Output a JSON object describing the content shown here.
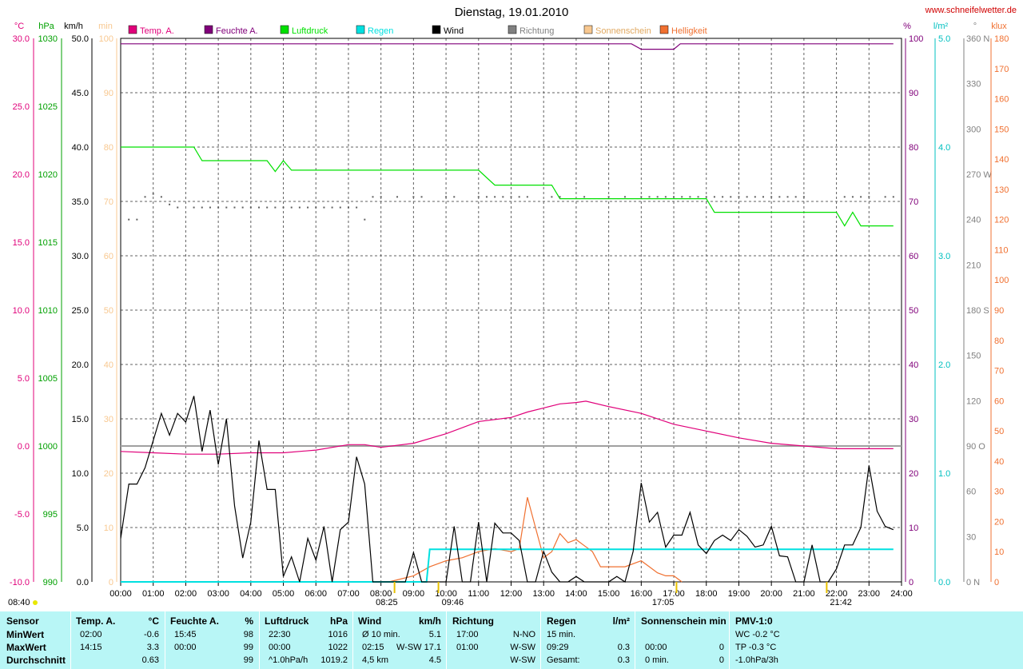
{
  "header": {
    "title": "Dienstag, 19.01.2010",
    "url": "www.schneifelwetter.de"
  },
  "legend": [
    {
      "label": "Temp. A.",
      "color": "#e0007a"
    },
    {
      "label": "Feuchte A.",
      "color": "#80007a"
    },
    {
      "label": "Luftdruck",
      "color": "#00e000"
    },
    {
      "label": "Regen",
      "color": "#00e0e0"
    },
    {
      "label": "Wind",
      "color": "#000000"
    },
    {
      "label": "Richtung",
      "color": "#808080"
    },
    {
      "label": "Sonnenschein",
      "color": "#f8c890"
    },
    {
      "label": "Helligkeit",
      "color": "#f07030"
    }
  ],
  "axes": {
    "temp": {
      "unit": "°C",
      "color": "#e0007a",
      "ticks": [
        "30.0",
        "25.0",
        "20.0",
        "15.0",
        "10.0",
        "5.0",
        "0.0",
        "-5.0",
        "-10.0"
      ],
      "range": [
        -10,
        30
      ]
    },
    "pressure": {
      "unit": "hPa",
      "color": "#00a000",
      "ticks": [
        "1030",
        "1025",
        "1020",
        "1015",
        "1010",
        "1005",
        "1000",
        "995",
        "990"
      ],
      "range": [
        990,
        1030
      ]
    },
    "wind": {
      "unit": "km/h",
      "color": "#000000",
      "ticks": [
        "50.0",
        "45.0",
        "40.0",
        "35.0",
        "30.0",
        "25.0",
        "20.0",
        "15.0",
        "10.0",
        "5.0",
        "0.0"
      ],
      "range": [
        0,
        50
      ]
    },
    "sun": {
      "unit": "min",
      "color": "#f8c890",
      "ticks": [
        "100",
        "90",
        "80",
        "70",
        "60",
        "50",
        "40",
        "30",
        "20",
        "10",
        "0"
      ],
      "range": [
        0,
        100
      ]
    },
    "humidity": {
      "unit": "%",
      "color": "#80007a",
      "ticks": [
        "100",
        "90",
        "80",
        "70",
        "60",
        "50",
        "40",
        "30",
        "20",
        "10",
        "0"
      ],
      "range": [
        0,
        100
      ]
    },
    "rain": {
      "unit": "l/m²",
      "color": "#00c0c0",
      "ticks": [
        "5.0",
        "4.0",
        "3.0",
        "2.0",
        "1.0",
        "0.0"
      ],
      "range": [
        0,
        5
      ]
    },
    "direction": {
      "unit": "°",
      "color": "#808080",
      "ticks": [
        "360 N",
        "330",
        "300",
        "270 W",
        "240",
        "210",
        "180 S",
        "150",
        "120",
        "90 O",
        "60",
        "30",
        "0   N"
      ],
      "range": [
        0,
        360
      ]
    },
    "brightness": {
      "unit": "klux",
      "color": "#f07030",
      "ticks": [
        "180",
        "170",
        "160",
        "150",
        "140",
        "130",
        "120",
        "110",
        "100",
        "90",
        "80",
        "70",
        "60",
        "50",
        "40",
        "30",
        "20",
        "10",
        "0"
      ],
      "range": [
        0,
        180
      ]
    },
    "time_ticks": [
      "00:00",
      "01:00",
      "02:00",
      "03:00",
      "04:00",
      "05:00",
      "06:00",
      "07:00",
      "08:00",
      "09:00",
      "10:00",
      "11:00",
      "12:00",
      "13:00",
      "14:00",
      "15:00",
      "16:00",
      "17:00",
      "18:00",
      "19:00",
      "20:00",
      "21:00",
      "22:00",
      "23:00",
      "24:00"
    ]
  },
  "events": {
    "moonset": "08:40",
    "sunrise": "08:25",
    "moonrise": "09:46",
    "sunset": "17:05",
    "moon_event": "21:42"
  },
  "chart_data": {
    "type": "line",
    "title": "Dienstag, 19.01.2010",
    "x_range": [
      "00:00",
      "24:00"
    ],
    "grid": true,
    "series": [
      {
        "name": "Temp. A.",
        "axis": "temp",
        "color": "#e0007a",
        "x": [
          0,
          1,
          2,
          3,
          4,
          5,
          6,
          7,
          7.5,
          8,
          9,
          10,
          11,
          12,
          12.5,
          13,
          13.5,
          14,
          14.3,
          15,
          16,
          17,
          18,
          19,
          20,
          21,
          22,
          23,
          23.75
        ],
        "y": [
          -0.4,
          -0.5,
          -0.6,
          -0.6,
          -0.5,
          -0.5,
          -0.3,
          0.1,
          0.1,
          -0.1,
          0.2,
          0.9,
          1.8,
          2.1,
          2.5,
          2.8,
          3.1,
          3.2,
          3.3,
          2.9,
          2.4,
          1.6,
          1.1,
          0.6,
          0.2,
          0.0,
          -0.2,
          -0.2,
          -0.2
        ]
      },
      {
        "name": "Feuchte A.",
        "axis": "humidity",
        "color": "#80007a",
        "x": [
          0,
          15.7,
          16,
          17,
          17.2,
          23.75
        ],
        "y": [
          99,
          99,
          98,
          98,
          99,
          99
        ]
      },
      {
        "name": "Luftdruck",
        "axis": "pressure",
        "color": "#00e000",
        "x": [
          0,
          2.25,
          2.5,
          4.5,
          4.75,
          5,
          5.25,
          11,
          11.5,
          13.25,
          13.5,
          18,
          18.25,
          22,
          22.25,
          22.5,
          22.75,
          23.75
        ],
        "y": [
          1022,
          1022,
          1021,
          1021,
          1020.2,
          1021,
          1020.3,
          1020.3,
          1019.2,
          1019.2,
          1018.2,
          1018.2,
          1017.2,
          1017.2,
          1016.2,
          1017.2,
          1016.2,
          1016.2
        ]
      },
      {
        "name": "Regen",
        "axis": "rain",
        "color": "#00e0e0",
        "x": [
          0,
          9.4,
          9.5,
          23.75
        ],
        "y": [
          0,
          0,
          0.3,
          0.3
        ]
      },
      {
        "name": "Wind",
        "axis": "wind",
        "color": "#000000",
        "x": [
          0,
          0.25,
          0.5,
          0.75,
          1,
          1.25,
          1.5,
          1.75,
          2,
          2.25,
          2.5,
          2.75,
          3,
          3.25,
          3.5,
          3.75,
          4,
          4.25,
          4.5,
          4.75,
          5,
          5.25,
          5.5,
          5.75,
          6,
          6.25,
          6.5,
          6.75,
          7,
          7.25,
          7.5,
          7.75,
          8,
          8.25,
          8.5,
          8.75,
          9,
          9.25,
          9.5,
          9.75,
          10,
          10.25,
          10.5,
          10.75,
          11,
          11.25,
          11.5,
          11.75,
          12,
          12.25,
          12.5,
          12.75,
          13,
          13.25,
          13.5,
          13.75,
          14,
          14.25,
          14.5,
          14.75,
          15,
          15.25,
          15.5,
          15.75,
          16,
          16.25,
          16.5,
          16.75,
          17,
          17.25,
          17.5,
          17.75,
          18,
          18.25,
          18.5,
          18.75,
          19,
          19.25,
          19.5,
          19.75,
          20,
          20.25,
          20.5,
          20.75,
          21,
          21.25,
          21.5,
          21.75,
          22,
          22.25,
          22.5,
          22.75,
          23,
          23.25,
          23.5,
          23.75
        ],
        "y": [
          4,
          9,
          9,
          10.5,
          13,
          15.5,
          13.5,
          15.5,
          14.7,
          17.1,
          12,
          15.8,
          10.8,
          15,
          7,
          2.2,
          5.5,
          13,
          8.5,
          8.5,
          0.5,
          2.3,
          0,
          4,
          2,
          5.1,
          0,
          4.8,
          5.5,
          11.5,
          9,
          0,
          0,
          0,
          0,
          0,
          2.7,
          0,
          0,
          0,
          0,
          5.1,
          0,
          0,
          5.5,
          0,
          5.4,
          4.5,
          4.5,
          3.8,
          0,
          0,
          2.8,
          0.9,
          0,
          0,
          0.5,
          0,
          0,
          0,
          0,
          0.5,
          0,
          2.8,
          9.1,
          5.5,
          6.4,
          3.2,
          4.3,
          4.3,
          6.4,
          3.4,
          2.6,
          3.8,
          4.3,
          3.8,
          4.8,
          4.2,
          3.2,
          3.4,
          5.1,
          2.4,
          2.3,
          0,
          0,
          3.4,
          0,
          0,
          1.2,
          3.4,
          3.4,
          5,
          10.7,
          6.5,
          5.1,
          4.8
        ]
      },
      {
        "name": "Richtung",
        "axis": "direction",
        "color": "#606060",
        "style": "dots",
        "x": [
          0.25,
          0.5,
          0.75,
          1,
          1.25,
          1.5,
          1.75,
          2.25,
          2.5,
          2.75,
          3,
          3.25,
          3.5,
          3.75,
          4,
          4.25,
          4.5,
          4.75,
          5,
          5.25,
          5.5,
          5.75,
          6,
          6.25,
          6.5,
          6.75,
          7,
          7.25,
          7.5,
          7.75,
          8,
          8.5,
          9,
          9.25,
          10,
          10.25,
          11,
          11.25,
          11.5,
          11.75,
          12,
          12.25,
          12.5,
          13.25,
          13.5,
          14.25,
          15,
          15.5,
          16,
          16.25,
          16.5,
          16.75,
          17,
          17.25,
          17.5,
          17.75,
          18,
          18.25,
          18.5,
          18.75,
          19,
          19.25,
          19.5,
          19.75,
          20,
          20.25,
          20.5,
          20.75,
          21,
          22.25,
          22.5,
          22.75,
          23,
          23.5,
          23.75
        ],
        "y": [
          240,
          240,
          255,
          257,
          255,
          250,
          248,
          248,
          248,
          248,
          248,
          248,
          248,
          248,
          248,
          248,
          248,
          248,
          248,
          248,
          248,
          248,
          248,
          248,
          248,
          248,
          248,
          248,
          240,
          255,
          255,
          255,
          255,
          255,
          255,
          255,
          255,
          255,
          255,
          255,
          255,
          255,
          255,
          255,
          255,
          255,
          255,
          255,
          255,
          255,
          255,
          255,
          255,
          255,
          255,
          255,
          255,
          255,
          255,
          255,
          255,
          255,
          255,
          255,
          255,
          255,
          255,
          255,
          255,
          255,
          255,
          255,
          255,
          255,
          255
        ]
      },
      {
        "name": "Helligkeit",
        "axis": "brightness",
        "color": "#f07030",
        "x": [
          8.25,
          9,
          9.5,
          10,
          10.5,
          11,
          11.5,
          12,
          12.25,
          12.5,
          12.75,
          13,
          13.25,
          13.5,
          13.75,
          14,
          14.25,
          14.5,
          14.75,
          15,
          15.5,
          16,
          16.25,
          16.5,
          16.75,
          17,
          17.25
        ],
        "y": [
          0,
          2,
          5,
          7,
          8,
          10,
          11,
          10,
          11,
          28,
          18,
          8,
          10,
          16,
          13,
          14,
          12,
          10,
          5,
          5,
          5,
          7,
          5,
          3,
          2,
          2,
          0
        ]
      }
    ]
  },
  "table": {
    "columns": [
      {
        "label": "Sensor",
        "unit": ""
      },
      {
        "label": "Temp. A.",
        "unit": "°C"
      },
      {
        "label": "Feuchte A.",
        "unit": "%"
      },
      {
        "label": "Luftdruck",
        "unit": "hPa"
      },
      {
        "label": "Wind",
        "unit": "km/h"
      },
      {
        "label": "Richtung",
        "unit": ""
      },
      {
        "label": "Regen",
        "unit": "l/m²"
      },
      {
        "label": "Sonnenschein min",
        "unit": ""
      },
      {
        "label": "PMV-1:0",
        "unit": ""
      }
    ],
    "rows": [
      {
        "label": "MinWert",
        "temp": [
          "02:00",
          "-0.6"
        ],
        "hum": [
          "15:45",
          "98"
        ],
        "press": [
          "22:30",
          "1016"
        ],
        "wind": [
          "Ø 10 min.",
          "",
          "5.1"
        ],
        "dir": [
          "17:00",
          "N-NO"
        ],
        "rain": [
          "15 min.",
          ""
        ],
        "sun": [
          "",
          ""
        ],
        "pmv": "WC -0.2 °C"
      },
      {
        "label": "MaxWert",
        "temp": [
          "14:15",
          "3.3"
        ],
        "hum": [
          "00:00",
          "99"
        ],
        "press": [
          "00:00",
          "1022"
        ],
        "wind": [
          "02:15",
          "W-SW",
          "17.1"
        ],
        "dir": [
          "01:00",
          "W-SW"
        ],
        "rain": [
          "09:29",
          "0.3"
        ],
        "sun": [
          "00:00",
          "0"
        ],
        "pmv": "TP -0.3 °C"
      },
      {
        "label": "Durchschnitt",
        "temp": [
          "",
          "0.63"
        ],
        "hum": [
          "",
          "99"
        ],
        "press": [
          "^1.0hPa/h",
          "1019.2"
        ],
        "wind": [
          "4,5 km",
          "",
          "4.5"
        ],
        "dir": [
          "",
          "W-SW"
        ],
        "rain": [
          "Gesamt:",
          "0.3"
        ],
        "sun": [
          "0 min.",
          "0"
        ],
        "pmv": "-1.0hPa/3h"
      }
    ]
  }
}
